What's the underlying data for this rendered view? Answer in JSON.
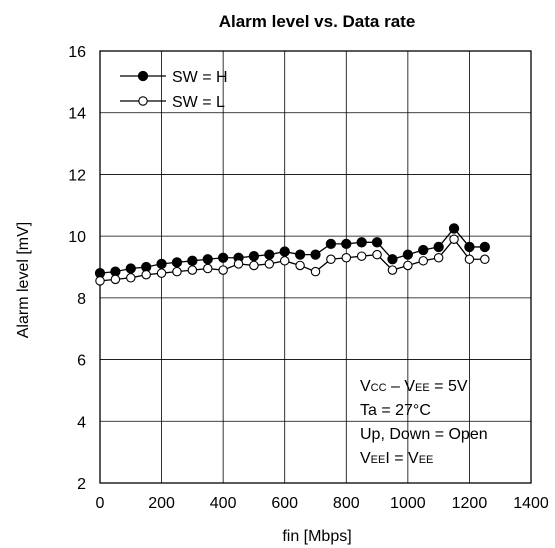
{
  "chart_data": {
    "type": "line",
    "title": "Alarm level vs. Data rate",
    "xlabel": "fin [Mbps]",
    "ylabel": "Alarm level [mV]",
    "xlim": [
      0,
      1400
    ],
    "ylim": [
      2,
      16
    ],
    "xticks": [
      "0",
      "200",
      "400",
      "600",
      "800",
      "1000",
      "1200",
      "1400"
    ],
    "yticks": [
      "2",
      "4",
      "6",
      "8",
      "10",
      "12",
      "14",
      "16"
    ],
    "grid": true,
    "legend_position": "top-left",
    "series": [
      {
        "name": "SW = H",
        "marker": "filled",
        "x": [
          0,
          50,
          100,
          150,
          200,
          250,
          300,
          350,
          400,
          450,
          500,
          550,
          600,
          650,
          700,
          750,
          800,
          850,
          900,
          950,
          1000,
          1050,
          1100,
          1150,
          1200,
          1250
        ],
        "y": [
          8.8,
          8.85,
          8.95,
          9.0,
          9.1,
          9.15,
          9.2,
          9.25,
          9.3,
          9.3,
          9.35,
          9.4,
          9.5,
          9.4,
          9.4,
          9.75,
          9.75,
          9.8,
          9.8,
          9.25,
          9.4,
          9.55,
          9.65,
          10.25,
          9.65,
          9.65
        ]
      },
      {
        "name": "SW = L",
        "marker": "open",
        "x": [
          0,
          50,
          100,
          150,
          200,
          250,
          300,
          350,
          400,
          450,
          500,
          550,
          600,
          650,
          700,
          750,
          800,
          850,
          900,
          950,
          1000,
          1050,
          1100,
          1150,
          1200,
          1250
        ],
        "y": [
          8.55,
          8.6,
          8.65,
          8.75,
          8.8,
          8.85,
          8.9,
          8.95,
          8.9,
          9.1,
          9.05,
          9.1,
          9.2,
          9.05,
          8.85,
          9.25,
          9.3,
          9.35,
          9.4,
          8.9,
          9.05,
          9.2,
          9.3,
          9.9,
          9.25,
          9.25
        ]
      }
    ],
    "annotations": [
      {
        "main1": "V",
        "sub1": "CC",
        "mid": " – V",
        "sub2": "EE",
        "tail": " = 5V"
      },
      {
        "text": "Ta = 27°C"
      },
      {
        "text": "Up, Down = Open"
      },
      {
        "main1": "V",
        "sub1": "EE",
        "mid": "I = V",
        "sub2": "EE",
        "tail": ""
      }
    ]
  }
}
